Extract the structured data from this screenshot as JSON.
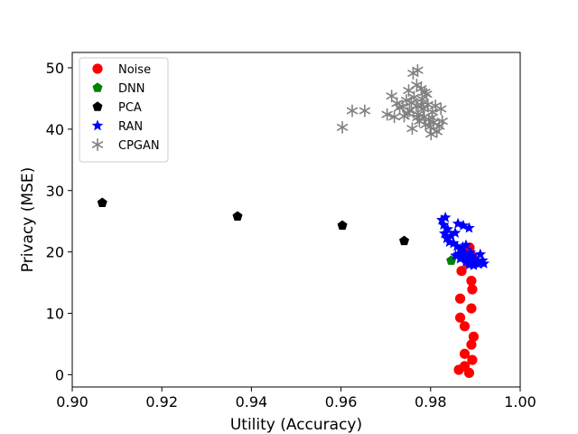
{
  "chart_data": {
    "type": "scatter",
    "title": "",
    "xlabel": "Utility (Accuracy)",
    "ylabel": "Privacy (MSE)",
    "xlim": [
      0.9,
      1.0
    ],
    "ylim": [
      -2.0,
      52.5
    ],
    "xticks": [
      "0.90",
      "0.92",
      "0.94",
      "0.96",
      "0.98",
      "1.00"
    ],
    "yticks": [
      "0",
      "10",
      "20",
      "30",
      "40",
      "50"
    ],
    "grid": false,
    "legend_position": "top-left",
    "series": [
      {
        "name": "Noise",
        "marker": "circle",
        "color": "#ff0000",
        "points": [
          [
            0.9887,
            20.7
          ],
          [
            0.9893,
            19.2
          ],
          [
            0.9883,
            18.2
          ],
          [
            0.9891,
            15.3
          ],
          [
            0.9869,
            16.9
          ],
          [
            0.9893,
            13.9
          ],
          [
            0.9866,
            12.4
          ],
          [
            0.9891,
            10.8
          ],
          [
            0.9866,
            9.3
          ],
          [
            0.9876,
            7.9
          ],
          [
            0.9896,
            6.2
          ],
          [
            0.9891,
            4.9
          ],
          [
            0.9876,
            3.4
          ],
          [
            0.9893,
            2.4
          ],
          [
            0.9876,
            1.4
          ],
          [
            0.9863,
            0.8
          ],
          [
            0.9886,
            0.3
          ]
        ]
      },
      {
        "name": "DNN",
        "marker": "pentagon",
        "color": "#008000",
        "points": [
          [
            0.9846,
            18.6
          ]
        ]
      },
      {
        "name": "PCA",
        "marker": "pentagon",
        "color": "#000000",
        "points": [
          [
            0.9067,
            28.0
          ],
          [
            0.9369,
            25.8
          ],
          [
            0.9603,
            24.3
          ],
          [
            0.9741,
            21.8
          ]
        ]
      },
      {
        "name": "RAN",
        "marker": "star",
        "color": "#0000ff",
        "points": [
          [
            0.9825,
            25.2
          ],
          [
            0.9833,
            25.6
          ],
          [
            0.9829,
            24.4
          ],
          [
            0.9838,
            23.7
          ],
          [
            0.9831,
            23.0
          ],
          [
            0.9846,
            22.6
          ],
          [
            0.9855,
            23.1
          ],
          [
            0.9836,
            22.2
          ],
          [
            0.9842,
            21.6
          ],
          [
            0.9861,
            24.6
          ],
          [
            0.9873,
            24.3
          ],
          [
            0.9886,
            23.9
          ],
          [
            0.9851,
            21.4
          ],
          [
            0.9859,
            20.9
          ],
          [
            0.9866,
            20.4
          ],
          [
            0.9872,
            20.8
          ],
          [
            0.9879,
            21.1
          ],
          [
            0.9874,
            19.9
          ],
          [
            0.9881,
            19.4
          ],
          [
            0.9889,
            19.9
          ],
          [
            0.9862,
            19.6
          ],
          [
            0.9871,
            19.1
          ],
          [
            0.9884,
            18.8
          ],
          [
            0.9893,
            18.6
          ],
          [
            0.9899,
            18.9
          ],
          [
            0.9904,
            18.3
          ],
          [
            0.9911,
            19.6
          ],
          [
            0.9916,
            18.6
          ],
          [
            0.9919,
            18.1
          ],
          [
            0.9886,
            17.9
          ],
          [
            0.9896,
            17.8
          ],
          [
            0.9879,
            18.4
          ],
          [
            0.9866,
            18.9
          ],
          [
            0.9856,
            19.4
          ],
          [
            0.9893,
            19.3
          ],
          [
            0.9907,
            18.0
          ]
        ]
      },
      {
        "name": "CPGAN",
        "marker": "asterisk",
        "color": "#808080",
        "points": [
          [
            0.9603,
            40.3
          ],
          [
            0.9625,
            43.0
          ],
          [
            0.9653,
            43.0
          ],
          [
            0.9703,
            42.4
          ],
          [
            0.9713,
            45.4
          ],
          [
            0.9719,
            42.0
          ],
          [
            0.9725,
            44.2
          ],
          [
            0.9731,
            43.5
          ],
          [
            0.9741,
            42.1
          ],
          [
            0.9746,
            44.7
          ],
          [
            0.9751,
            46.3
          ],
          [
            0.9753,
            43.0
          ],
          [
            0.9759,
            40.1
          ],
          [
            0.9761,
            49.1
          ],
          [
            0.9769,
            47.2
          ],
          [
            0.9771,
            49.6
          ],
          [
            0.9763,
            45.2
          ],
          [
            0.9768,
            43.8
          ],
          [
            0.9772,
            42.4
          ],
          [
            0.9775,
            41.3
          ],
          [
            0.9779,
            46.6
          ],
          [
            0.9781,
            44.9
          ],
          [
            0.9784,
            43.3
          ],
          [
            0.9786,
            42.0
          ],
          [
            0.9789,
            40.7
          ],
          [
            0.9791,
            45.7
          ],
          [
            0.9794,
            44.0
          ],
          [
            0.9796,
            41.6
          ],
          [
            0.9799,
            40.4
          ],
          [
            0.9801,
            39.2
          ],
          [
            0.9804,
            42.8
          ],
          [
            0.9807,
            41.1
          ],
          [
            0.9811,
            43.8
          ],
          [
            0.9814,
            39.6
          ],
          [
            0.9819,
            40.5
          ],
          [
            0.9823,
            43.3
          ],
          [
            0.9826,
            41.3
          ],
          [
            0.9779,
            43.9
          ],
          [
            0.9771,
            41.9
          ],
          [
            0.9757,
            44.3
          ],
          [
            0.9749,
            42.6
          ],
          [
            0.9738,
            43.7
          ],
          [
            0.9787,
            46.0
          ],
          [
            0.9803,
            41.9
          ]
        ]
      }
    ]
  }
}
